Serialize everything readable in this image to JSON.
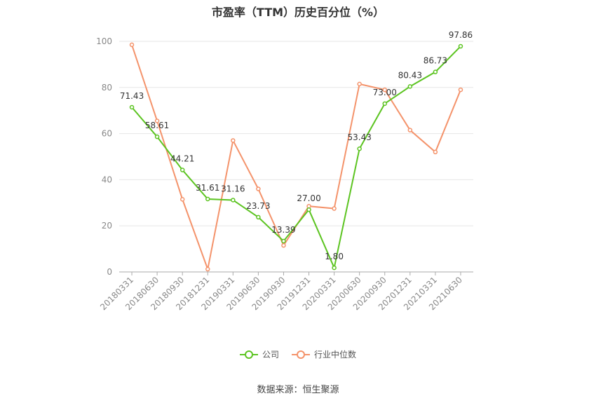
{
  "title": "市盈率（TTM）历史百分位（%）",
  "source": "数据来源：恒生聚源",
  "colors": {
    "company": "#5cc421",
    "industry": "#f4936b",
    "grid": "#e6e6e6",
    "axis": "#aaaaaa"
  },
  "chart_data": {
    "type": "line",
    "title": "市盈率（TTM）历史百分位（%）",
    "categories": [
      "20180331",
      "20180630",
      "20180930",
      "20181231",
      "20190331",
      "20190630",
      "20190930",
      "20191231",
      "20200331",
      "20200630",
      "20200930",
      "20201231",
      "20210331",
      "20210630"
    ],
    "ylim": [
      0,
      100
    ],
    "yticks": [
      0,
      20,
      40,
      60,
      80,
      100
    ],
    "grid": true,
    "legend_position": "bottom",
    "series": [
      {
        "name": "公司",
        "color": "#5cc421",
        "show_labels": true,
        "values": [
          71.43,
          58.61,
          44.21,
          31.61,
          31.16,
          23.73,
          13.39,
          27.0,
          1.8,
          53.43,
          73.0,
          80.43,
          86.73,
          97.86
        ],
        "labels": [
          "71.43",
          "58.61",
          "44.21",
          "31.61",
          "31.16",
          "23.73",
          "13.39",
          "27.00",
          "1.80",
          "53.43",
          "73.00",
          "80.43",
          "86.73",
          "97.86"
        ]
      },
      {
        "name": "行业中位数",
        "color": "#f4936b",
        "show_labels": false,
        "values": [
          98.5,
          65.5,
          31.5,
          1.2,
          57.0,
          36.0,
          11.5,
          28.5,
          27.5,
          81.5,
          79.0,
          61.5,
          52.0,
          79.0
        ]
      }
    ]
  }
}
